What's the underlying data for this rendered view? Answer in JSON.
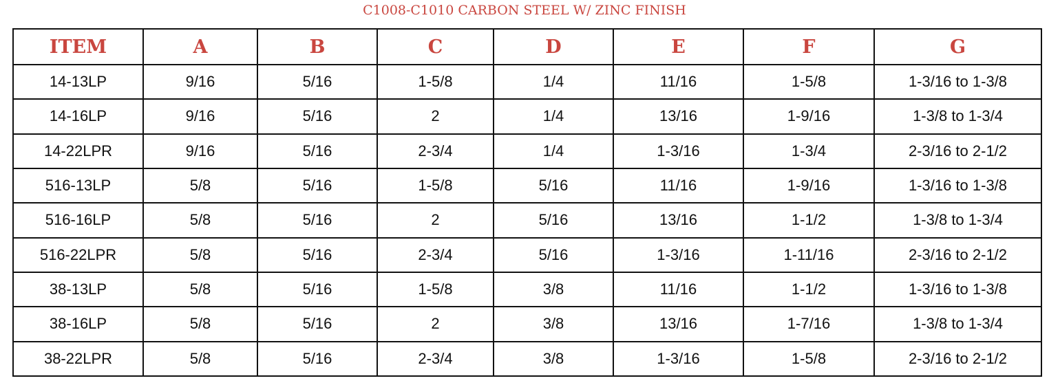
{
  "title": "C1008-C1010 CARBON STEEL W/ ZINC FINISH",
  "table": {
    "header": [
      "ITEM",
      "A",
      "B",
      "C",
      "D",
      "E",
      "F",
      "G"
    ],
    "rows": [
      [
        "14-13LP",
        "9/16",
        "5/16",
        "1-5/8",
        "1/4",
        "11/16",
        "1-5/8",
        "1-3/16 to 1-3/8"
      ],
      [
        "14-16LP",
        "9/16",
        "5/16",
        "2",
        "1/4",
        "13/16",
        "1-9/16",
        "1-3/8 to 1-3/4"
      ],
      [
        "14-22LPR",
        "9/16",
        "5/16",
        "2-3/4",
        "1/4",
        "1-3/16",
        "1-3/4",
        "2-3/16 to 2-1/2"
      ],
      [
        "516-13LP",
        "5/8",
        "5/16",
        "1-5/8",
        "5/16",
        "11/16",
        "1-9/16",
        "1-3/16 to 1-3/8"
      ],
      [
        "516-16LP",
        "5/8",
        "5/16",
        "2",
        "5/16",
        "13/16",
        "1-1/2",
        "1-3/8 to 1-3/4"
      ],
      [
        "516-22LPR",
        "5/8",
        "5/16",
        "2-3/4",
        "5/16",
        "1-3/16",
        "1-11/16",
        "2-3/16 to 2-1/2"
      ],
      [
        "38-13LP",
        "5/8",
        "5/16",
        "1-5/8",
        "3/8",
        "11/16",
        "1-1/2",
        "1-3/16 to 1-3/8"
      ],
      [
        "38-16LP",
        "5/8",
        "5/16",
        "2",
        "3/8",
        "13/16",
        "1-7/16",
        "1-3/8 to 1-3/4"
      ],
      [
        "38-22LPR",
        "5/8",
        "5/16",
        "2-3/4",
        "3/8",
        "1-3/16",
        "1-5/8",
        "2-3/16 to 2-1/2"
      ]
    ]
  }
}
